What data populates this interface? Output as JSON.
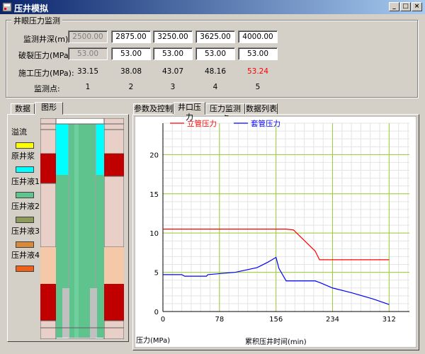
{
  "window": {
    "title": "压井模拟"
  },
  "monitor": {
    "group_title": "井眼压力监测",
    "row_labels": {
      "depth": "监测井深(m):",
      "frac": "破裂压力(MPa):",
      "construct": "施工压力(MPa):",
      "point": "监测点:"
    },
    "depth": [
      "2500.00",
      "2875.00",
      "3250.00",
      "3625.00",
      "4000.00"
    ],
    "frac": [
      "53.00",
      "53.00",
      "53.00",
      "53.00",
      "53.00"
    ],
    "construct": [
      "33.15",
      "38.08",
      "43.07",
      "48.16",
      "53.24"
    ],
    "points": [
      "1",
      "2",
      "3",
      "4",
      "5"
    ],
    "alert_color": "#ff0000"
  },
  "left_tabs": [
    "数据",
    "图形"
  ],
  "legend": [
    {
      "label": "溢流",
      "color": "#ffff00"
    },
    {
      "label": "原井浆",
      "color": "#00ffff"
    },
    {
      "label": "压井液1",
      "color": "#5fc38e"
    },
    {
      "label": "压井液2",
      "color": "#8c9a5a"
    },
    {
      "label": "压井液3",
      "color": "#d8893a"
    },
    {
      "label": "压井液4",
      "color": "#f06018"
    }
  ],
  "right_tabs": [
    "参数及控制",
    "井口压力",
    "压力监测点",
    "数据列表"
  ],
  "chart_data": {
    "type": "line",
    "xlabel": "累积压井时间(min)",
    "ylabel": "压力(MPa)",
    "x_ticks": [
      "0",
      "78",
      "156",
      "234",
      "312"
    ],
    "y_ticks": [
      "0",
      "5",
      "10",
      "15",
      "20"
    ],
    "xlim": [
      0,
      340
    ],
    "ylim": [
      0,
      24
    ],
    "legend_position": "top-left",
    "grid": true,
    "series": [
      {
        "name": "立管压力",
        "color": "#ff0000",
        "x": [
          0,
          60,
          100,
          156,
          170,
          180,
          210,
          216,
          234,
          312,
          312
        ],
        "y": [
          10.5,
          10.5,
          10.5,
          10.5,
          10.5,
          10.4,
          7.7,
          6.6,
          6.6,
          6.6,
          6.6
        ]
      },
      {
        "name": "套管压力",
        "color": "#0000ff",
        "x": [
          0,
          26,
          30,
          60,
          62,
          100,
          130,
          145,
          156,
          160,
          170,
          210,
          216,
          234,
          260,
          290,
          312
        ],
        "y": [
          4.7,
          4.7,
          4.5,
          4.5,
          4.7,
          5.0,
          5.6,
          6.3,
          6.9,
          5.5,
          3.9,
          3.9,
          3.7,
          3.0,
          2.4,
          1.6,
          0.9
        ]
      }
    ]
  }
}
